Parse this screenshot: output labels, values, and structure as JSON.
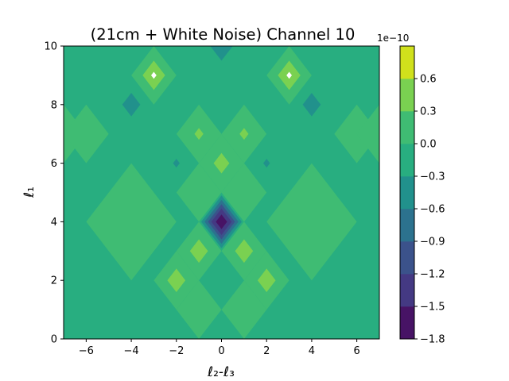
{
  "chart_data": {
    "type": "heatmap",
    "subtype": "filled-contour",
    "title": "(21cm + White Noise) Channel 10",
    "xlabel": "ℓ₂-ℓ₃",
    "ylabel": "ℓ₁",
    "xlim": [
      -7,
      7
    ],
    "ylim": [
      0,
      10
    ],
    "x_ticks": [
      "−6",
      "−4",
      "−2",
      "0",
      "2",
      "4",
      "6"
    ],
    "y_ticks": [
      "0",
      "2",
      "4",
      "6",
      "8",
      "10"
    ],
    "grid": false,
    "colorbar": {
      "multiplier_label": "1e−10",
      "levels": [
        -1.8,
        -1.5,
        -1.2,
        -0.9,
        -0.6,
        -0.3,
        0.0,
        0.3,
        0.6
      ],
      "tick_labels": [
        "−1.8",
        "−1.5",
        "−1.2",
        "−0.9",
        "−0.6",
        "−0.3",
        "0.0",
        "0.3",
        "0.6"
      ],
      "colors": [
        "#471365",
        "#443983",
        "#3b528b",
        "#2c728e",
        "#21918c",
        "#28ae80",
        "#3fbc73",
        "#7ad151",
        "#d0e11c"
      ],
      "over_color": "#ffffff"
    },
    "background_band": "-0.3 to 0.0",
    "regions": [
      {
        "level": "0.0 to 0.3",
        "center": [
          -3,
          9
        ],
        "radius": 1
      },
      {
        "level": "0.3 to 0.6",
        "center": [
          -3,
          9
        ],
        "radius": 0.5
      },
      {
        "level": "> 0.6",
        "center": [
          -3,
          9
        ],
        "radius": 0.12
      },
      {
        "level": "0.0 to 0.3",
        "center": [
          3,
          9
        ],
        "radius": 1
      },
      {
        "level": "0.3 to 0.6",
        "center": [
          3,
          9
        ],
        "radius": 0.5
      },
      {
        "level": "> 0.6",
        "center": [
          3,
          9
        ],
        "radius": 0.12
      },
      {
        "level": "-0.6 to -0.3",
        "center": [
          0,
          10
        ],
        "radius": 0.5
      },
      {
        "level": "-0.6 to -0.3",
        "center": [
          -4,
          8
        ],
        "radius": 0.4
      },
      {
        "level": "-0.6 to -0.3",
        "center": [
          4,
          8
        ],
        "radius": 0.4
      },
      {
        "level": "0.0 to 0.3",
        "center": [
          -7,
          7
        ],
        "radius": 1
      },
      {
        "level": "0.0 to 0.3",
        "center": [
          -6,
          7
        ],
        "radius": 1
      },
      {
        "level": "0.0 to 0.3",
        "center": [
          6,
          7
        ],
        "radius": 1
      },
      {
        "level": "0.0 to 0.3",
        "center": [
          7,
          7
        ],
        "radius": 1
      },
      {
        "level": "0.0 to 0.3",
        "center": [
          -1,
          7
        ],
        "radius": 1
      },
      {
        "level": "0.0 to 0.3",
        "center": [
          1,
          7
        ],
        "radius": 1
      },
      {
        "level": "0.0 to 0.3",
        "center": [
          0,
          6
        ],
        "radius": 1
      },
      {
        "level": "0.0 to 0.3",
        "center": [
          -1,
          5
        ],
        "radius": 1
      },
      {
        "level": "0.0 to 0.3",
        "center": [
          1,
          5
        ],
        "radius": 1
      },
      {
        "level": "0.0 to 0.3",
        "center": [
          -4,
          4
        ],
        "radius": 2
      },
      {
        "level": "0.0 to 0.3",
        "center": [
          4,
          4
        ],
        "radius": 2
      },
      {
        "level": "0.0 to 0.3",
        "center": [
          -1,
          3
        ],
        "radius": 1
      },
      {
        "level": "0.0 to 0.3",
        "center": [
          1,
          3
        ],
        "radius": 1
      },
      {
        "level": "0.0 to 0.3",
        "center": [
          -2,
          2
        ],
        "radius": 1
      },
      {
        "level": "0.0 to 0.3",
        "center": [
          2,
          2
        ],
        "radius": 1
      },
      {
        "level": "0.0 to 0.3",
        "center": [
          -1,
          1
        ],
        "radius": 1
      },
      {
        "level": "0.0 to 0.3",
        "center": [
          1,
          1
        ],
        "radius": 1
      },
      {
        "level": "-0.3 to 0.0",
        "center": [
          0,
          2
        ],
        "radius": 0.8
      },
      {
        "level": "0.3 to 0.6",
        "center": [
          -1,
          7
        ],
        "radius": 0.2
      },
      {
        "level": "0.3 to 0.6",
        "center": [
          1,
          7
        ],
        "radius": 0.2
      },
      {
        "level": "0.3 to 0.6",
        "center": [
          0,
          6
        ],
        "radius": 0.35
      },
      {
        "level": "-0.6 to -0.3",
        "center": [
          -2,
          6
        ],
        "radius": 0.15
      },
      {
        "level": "-0.6 to -0.3",
        "center": [
          2,
          6
        ],
        "radius": 0.15
      },
      {
        "level": "0.3 to 0.6",
        "center": [
          -1,
          3
        ],
        "radius": 0.4
      },
      {
        "level": "0.3 to 0.6",
        "center": [
          1,
          3
        ],
        "radius": 0.4
      },
      {
        "level": "0.3 to 0.6",
        "center": [
          -2,
          2
        ],
        "radius": 0.4
      },
      {
        "level": "0.3 to 0.6",
        "center": [
          2,
          2
        ],
        "radius": 0.4
      },
      {
        "level": "-0.6 to -0.3",
        "center": [
          0,
          4
        ],
        "radius": 0.9
      },
      {
        "level": "-0.9 to -0.6",
        "center": [
          0,
          4
        ],
        "radius": 0.75
      },
      {
        "level": "-1.2 to -0.9",
        "center": [
          0,
          4
        ],
        "radius": 0.6
      },
      {
        "level": "-1.5 to -1.2",
        "center": [
          0,
          4
        ],
        "radius": 0.45
      },
      {
        "level": "-1.8 to -1.5",
        "center": [
          0,
          4
        ],
        "radius": 0.25
      }
    ]
  }
}
